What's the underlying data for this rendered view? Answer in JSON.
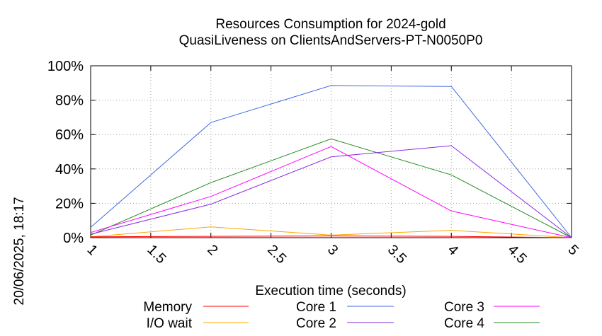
{
  "chart_data": {
    "type": "line",
    "title": [
      "Resources Consumption for 2024-gold",
      "QuasiLiveness on ClientsAndServers-PT-N0050P0"
    ],
    "xlabel": "Execution time (seconds)",
    "ylabel": "",
    "xlim": [
      1,
      5
    ],
    "ylim": [
      0,
      100
    ],
    "x_ticks": [
      "1",
      "1.5",
      "2",
      "2.5",
      "3",
      "3.5",
      "4",
      "4.5",
      "5"
    ],
    "y_ticks": [
      "0%",
      "20%",
      "40%",
      "60%",
      "80%",
      "100%"
    ],
    "grid": true,
    "legend_position": "bottom",
    "x": [
      1,
      2,
      3,
      4,
      5
    ],
    "series": [
      {
        "name": "Memory",
        "color": "#ff0000",
        "values": [
          0.5,
          0.8,
          1.0,
          0.8,
          0
        ]
      },
      {
        "name": "I/O wait",
        "color": "#ffa500",
        "values": [
          0.5,
          6.3,
          1.5,
          4.3,
          0
        ]
      },
      {
        "name": "Core 1",
        "color": "#4169e1",
        "values": [
          6.0,
          67.0,
          88.5,
          88.0,
          0
        ]
      },
      {
        "name": "Core 2",
        "color": "#8a2be2",
        "values": [
          2.0,
          19.5,
          47.0,
          53.5,
          0
        ]
      },
      {
        "name": "Core 3",
        "color": "#ff00ff",
        "values": [
          3.0,
          24.0,
          53.0,
          15.5,
          0
        ]
      },
      {
        "name": "Core 4",
        "color": "#228b22",
        "values": [
          1.5,
          32.0,
          57.5,
          36.5,
          0
        ]
      }
    ]
  },
  "side_stamp": "20/06/2025, 18:17"
}
